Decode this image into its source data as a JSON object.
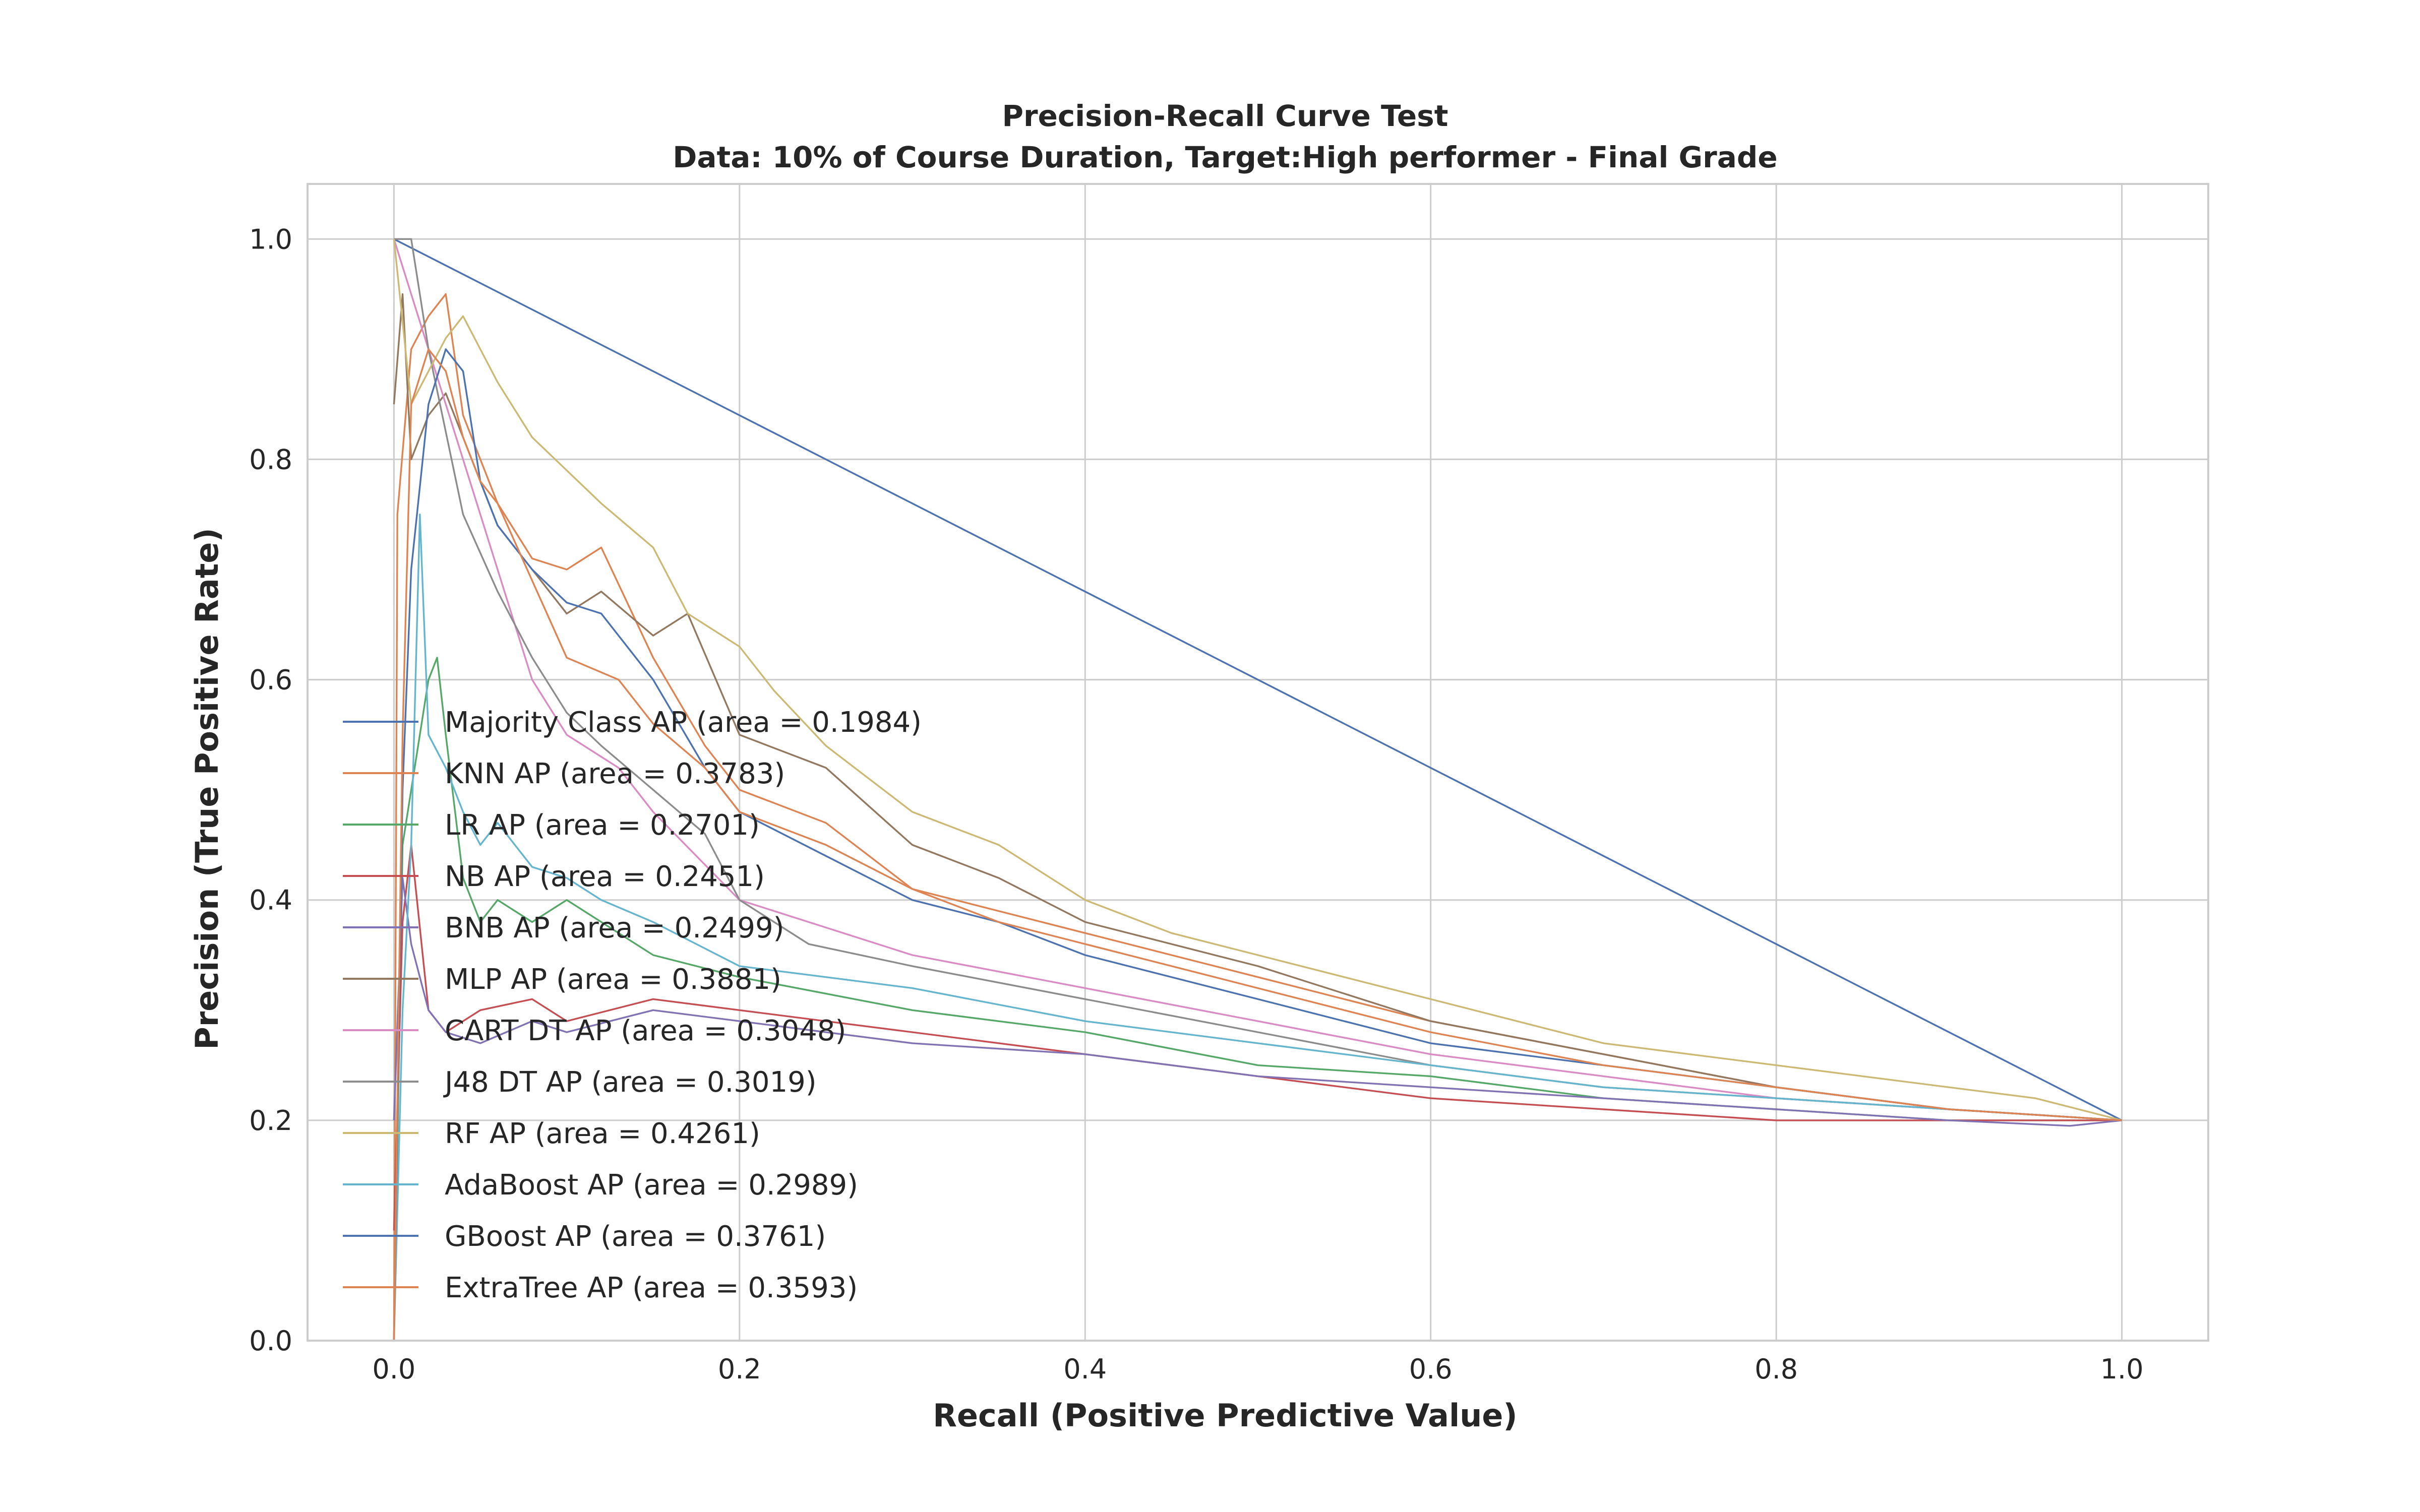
{
  "chart_data": {
    "type": "line",
    "title": "Precision-Recall Curve Test",
    "subtitle": "Data: 10% of Course Duration, Target:High performer - Final Grade",
    "xlabel": "Recall (Positive Predictive Value)",
    "ylabel": "Precision (True Positive Rate)",
    "xlim": [
      -0.05,
      1.05
    ],
    "ylim": [
      0.0,
      1.05
    ],
    "xticks": [
      "0.0",
      "0.2",
      "0.4",
      "0.6",
      "0.8",
      "1.0"
    ],
    "yticks": [
      "0.0",
      "0.2",
      "0.4",
      "0.6",
      "0.8",
      "1.0"
    ],
    "grid": true,
    "legend_position": "center-left",
    "series": [
      {
        "name": "Majority Class AP (area = 0.1984)",
        "color": "#4c72b0",
        "x": [
          0.0,
          1.0
        ],
        "y": [
          1.0,
          0.2
        ]
      },
      {
        "name": "KNN AP (area = 0.3783)",
        "color": "#dd8452",
        "x": [
          0.0,
          0.002,
          0.01,
          0.02,
          0.03,
          0.04,
          0.05,
          0.06,
          0.08,
          0.1,
          0.12,
          0.15,
          0.18,
          0.2,
          0.25,
          0.3,
          0.35,
          0.4,
          0.45,
          0.5,
          0.6,
          0.7,
          0.8,
          0.9,
          1.0
        ],
        "y": [
          0.0,
          0.75,
          0.9,
          0.93,
          0.95,
          0.84,
          0.8,
          0.76,
          0.71,
          0.7,
          0.72,
          0.62,
          0.54,
          0.5,
          0.47,
          0.41,
          0.39,
          0.37,
          0.35,
          0.33,
          0.29,
          0.26,
          0.23,
          0.21,
          0.2
        ]
      },
      {
        "name": "LR AP (area = 0.2701)",
        "color": "#55a868",
        "x": [
          0.0,
          0.005,
          0.01,
          0.02,
          0.025,
          0.03,
          0.04,
          0.05,
          0.06,
          0.08,
          0.1,
          0.15,
          0.2,
          0.3,
          0.4,
          0.5,
          0.6,
          0.7,
          0.8,
          0.9,
          1.0
        ],
        "y": [
          0.0,
          0.45,
          0.5,
          0.6,
          0.62,
          0.55,
          0.42,
          0.38,
          0.4,
          0.38,
          0.4,
          0.35,
          0.33,
          0.3,
          0.28,
          0.25,
          0.24,
          0.22,
          0.21,
          0.2,
          0.2
        ]
      },
      {
        "name": "NB AP (area = 0.2451)",
        "color": "#c44e52",
        "x": [
          0.0,
          0.005,
          0.01,
          0.02,
          0.03,
          0.05,
          0.08,
          0.1,
          0.15,
          0.2,
          0.3,
          0.4,
          0.5,
          0.6,
          0.7,
          0.8,
          0.9,
          1.0
        ],
        "y": [
          0.1,
          0.38,
          0.45,
          0.3,
          0.28,
          0.3,
          0.31,
          0.29,
          0.31,
          0.3,
          0.28,
          0.26,
          0.24,
          0.22,
          0.21,
          0.2,
          0.2,
          0.2
        ]
      },
      {
        "name": "BNB AP (area = 0.2499)",
        "color": "#8172b3",
        "x": [
          0.0,
          0.005,
          0.01,
          0.02,
          0.03,
          0.05,
          0.08,
          0.1,
          0.15,
          0.2,
          0.3,
          0.4,
          0.5,
          0.6,
          0.7,
          0.8,
          0.9,
          0.97,
          1.0
        ],
        "y": [
          0.2,
          0.42,
          0.36,
          0.3,
          0.28,
          0.27,
          0.29,
          0.28,
          0.3,
          0.29,
          0.27,
          0.26,
          0.24,
          0.23,
          0.22,
          0.21,
          0.2,
          0.195,
          0.2
        ]
      },
      {
        "name": "MLP AP (area = 0.3881)",
        "color": "#937860",
        "x": [
          0.0,
          0.005,
          0.01,
          0.02,
          0.03,
          0.05,
          0.06,
          0.08,
          0.1,
          0.12,
          0.15,
          0.17,
          0.2,
          0.25,
          0.3,
          0.35,
          0.4,
          0.5,
          0.6,
          0.7,
          0.8,
          0.9,
          1.0
        ],
        "y": [
          0.85,
          0.95,
          0.8,
          0.84,
          0.86,
          0.78,
          0.74,
          0.7,
          0.66,
          0.68,
          0.64,
          0.66,
          0.55,
          0.52,
          0.45,
          0.42,
          0.38,
          0.34,
          0.29,
          0.26,
          0.23,
          0.21,
          0.2
        ]
      },
      {
        "name": "CART DT AP (area = 0.3048)",
        "color": "#da8bc3",
        "x": [
          0.0,
          0.01,
          0.03,
          0.05,
          0.08,
          0.1,
          0.13,
          0.15,
          0.2,
          0.3,
          0.4,
          0.5,
          0.6,
          0.7,
          0.8,
          0.9,
          1.0
        ],
        "y": [
          1.0,
          0.95,
          0.85,
          0.75,
          0.6,
          0.55,
          0.52,
          0.48,
          0.4,
          0.35,
          0.32,
          0.29,
          0.26,
          0.24,
          0.22,
          0.21,
          0.2
        ]
      },
      {
        "name": "J48 DT AP (area = 0.3019)",
        "color": "#8c8c8c",
        "x": [
          0.0,
          0.005,
          0.01,
          0.02,
          0.04,
          0.06,
          0.08,
          0.1,
          0.12,
          0.15,
          0.18,
          0.2,
          0.24,
          0.3,
          0.4,
          0.5,
          0.6,
          0.7,
          0.8,
          0.9,
          1.0
        ],
        "y": [
          1.0,
          1.0,
          1.0,
          0.9,
          0.75,
          0.68,
          0.62,
          0.57,
          0.54,
          0.5,
          0.46,
          0.4,
          0.36,
          0.34,
          0.31,
          0.28,
          0.25,
          0.23,
          0.22,
          0.21,
          0.2
        ]
      },
      {
        "name": "RF AP (area = 0.4261)",
        "color": "#ccb974",
        "x": [
          0.0,
          0.01,
          0.02,
          0.03,
          0.04,
          0.05,
          0.06,
          0.08,
          0.1,
          0.12,
          0.15,
          0.17,
          0.2,
          0.22,
          0.25,
          0.3,
          0.35,
          0.4,
          0.45,
          0.5,
          0.6,
          0.7,
          0.8,
          0.85,
          0.9,
          0.95,
          1.0
        ],
        "y": [
          1.0,
          0.85,
          0.88,
          0.91,
          0.93,
          0.9,
          0.87,
          0.82,
          0.79,
          0.76,
          0.72,
          0.66,
          0.63,
          0.59,
          0.54,
          0.48,
          0.45,
          0.4,
          0.37,
          0.35,
          0.31,
          0.27,
          0.25,
          0.24,
          0.23,
          0.22,
          0.2
        ]
      },
      {
        "name": "AdaBoost AP (area = 0.2989)",
        "color": "#64b5cd",
        "x": [
          0.0,
          0.005,
          0.01,
          0.015,
          0.02,
          0.03,
          0.04,
          0.05,
          0.06,
          0.08,
          0.1,
          0.12,
          0.15,
          0.2,
          0.25,
          0.3,
          0.4,
          0.5,
          0.6,
          0.7,
          0.8,
          0.9,
          1.0
        ],
        "y": [
          0.0,
          0.3,
          0.45,
          0.75,
          0.55,
          0.52,
          0.48,
          0.45,
          0.47,
          0.43,
          0.42,
          0.4,
          0.38,
          0.34,
          0.33,
          0.32,
          0.29,
          0.27,
          0.25,
          0.23,
          0.22,
          0.21,
          0.2
        ]
      },
      {
        "name": "GBoost AP (area = 0.3761)",
        "color": "#4c72b0",
        "x": [
          0.0,
          0.005,
          0.01,
          0.02,
          0.03,
          0.04,
          0.05,
          0.06,
          0.08,
          0.1,
          0.12,
          0.15,
          0.18,
          0.2,
          0.25,
          0.3,
          0.35,
          0.4,
          0.5,
          0.6,
          0.7,
          0.8,
          0.9,
          1.0
        ],
        "y": [
          0.0,
          0.5,
          0.7,
          0.85,
          0.9,
          0.88,
          0.78,
          0.74,
          0.7,
          0.67,
          0.66,
          0.6,
          0.52,
          0.48,
          0.44,
          0.4,
          0.38,
          0.35,
          0.31,
          0.27,
          0.25,
          0.23,
          0.21,
          0.2
        ]
      },
      {
        "name": "ExtraTree AP (area = 0.3593)",
        "color": "#dd8452",
        "x": [
          0.0,
          0.005,
          0.01,
          0.02,
          0.03,
          0.04,
          0.05,
          0.06,
          0.08,
          0.1,
          0.13,
          0.15,
          0.18,
          0.2,
          0.25,
          0.3,
          0.35,
          0.4,
          0.5,
          0.6,
          0.7,
          0.8,
          0.9,
          1.0
        ],
        "y": [
          0.0,
          0.55,
          0.85,
          0.9,
          0.88,
          0.82,
          0.78,
          0.76,
          0.69,
          0.62,
          0.6,
          0.56,
          0.52,
          0.48,
          0.45,
          0.41,
          0.38,
          0.36,
          0.32,
          0.28,
          0.25,
          0.23,
          0.21,
          0.2
        ]
      }
    ]
  }
}
